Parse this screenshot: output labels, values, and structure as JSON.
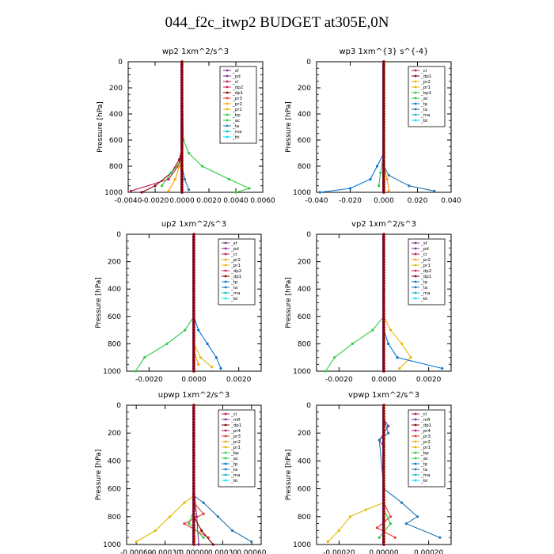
{
  "page": {
    "title": "044_f2c_itwp2  BUDGET at305E,0N"
  },
  "colors": {
    "_sf": "#7b3294",
    "_pd": "#7b3294",
    "_cl": "#c2185b",
    "_dp1": "#8b0000",
    "_dp2": "#d81b60",
    "_pr1": "#e6b800",
    "_pr2": "#ffa000",
    "_pr3": "#e53935",
    "_pr4": "#c2185b",
    "_bp": "#2ecc40",
    "_bp1": "#2ecc40",
    "_ac": "#2ecc40",
    "_dp2b": "#2ecc40",
    "_tp": "#0074d9",
    "_ta": "#1f77b4",
    "_ma": "#00bcd4",
    "_bt": "#00e5ff",
    "_mfl": "#7b3294"
  },
  "chart_data": [
    {
      "type": "line",
      "title": "wp2   1xm^2/s^3",
      "ylabel": "Pressure  [hPa]",
      "ylim": [
        1000,
        0
      ],
      "xlim": [
        -0.004,
        0.006
      ],
      "xticks": [
        "-0.0040",
        "-0.0020",
        "0.0000",
        "0.0020",
        "0.0040",
        "0.0060"
      ],
      "xtick_values": [
        -0.004,
        -0.002,
        0.0,
        0.002,
        0.004,
        0.006
      ],
      "yticks": [
        "0",
        "200",
        "400",
        "600",
        "800",
        "1000"
      ],
      "legend": [
        "_sf",
        "_pd",
        "_cl",
        "_dp2",
        "_dp1",
        "_pr3",
        "_pr2",
        "_pr1",
        "_bp",
        "_ac",
        "_ta",
        "_ma",
        "_bt"
      ],
      "series": [
        {
          "key": "_pd",
          "color": "#7b3294",
          "points": [
            [
              0,
              0
            ],
            [
              0,
              200
            ],
            [
              0,
              400
            ],
            [
              0,
              600
            ],
            [
              0,
              800
            ],
            [
              0,
              1000
            ]
          ]
        },
        {
          "key": "_cl",
          "color": "#c2185b",
          "points": [
            [
              0,
              0
            ],
            [
              0,
              600
            ],
            [
              0,
              700
            ],
            [
              -0.0003,
              800
            ],
            [
              -0.001,
              900
            ],
            [
              -0.0038,
              990
            ]
          ]
        },
        {
          "key": "_dp1",
          "color": "#8b0000",
          "points": [
            [
              0,
              0
            ],
            [
              0,
              650
            ],
            [
              -0.0002,
              750
            ],
            [
              -0.0008,
              850
            ],
            [
              -0.002,
              950
            ],
            [
              -0.003,
              1000
            ]
          ]
        },
        {
          "key": "_pr2",
          "color": "#ffa000",
          "points": [
            [
              0,
              0
            ],
            [
              0,
              700
            ],
            [
              -0.0002,
              800
            ],
            [
              -0.0005,
              900
            ],
            [
              -0.001,
              990
            ]
          ]
        },
        {
          "key": "_ac",
          "color": "#2ecc40",
          "points": [
            [
              0,
              0
            ],
            [
              0.0001,
              600
            ],
            [
              0.0005,
              700
            ],
            [
              0.0015,
              800
            ],
            [
              0.0035,
              900
            ],
            [
              0.005,
              970
            ],
            [
              0.004,
              1000
            ]
          ]
        },
        {
          "key": "_ta",
          "color": "#1f77b4",
          "points": [
            [
              0,
              0
            ],
            [
              0,
              800
            ],
            [
              0.0002,
              900
            ],
            [
              0.0005,
              980
            ]
          ]
        },
        {
          "key": "_bp",
          "color": "#2ecc40",
          "points": [
            [
              0,
              0
            ],
            [
              0,
              750
            ],
            [
              -0.0008,
              850
            ],
            [
              -0.0015,
              950
            ]
          ]
        }
      ]
    },
    {
      "type": "line",
      "title": "wp3   1xm^{3} s^{-4}",
      "ylabel": "Pressure  [hPa]",
      "ylim": [
        1000,
        0
      ],
      "xlim": [
        -0.04,
        0.04
      ],
      "xticks": [
        "-0.040",
        "-0.020",
        "0.000",
        "0.020",
        "0.040"
      ],
      "xtick_values": [
        -0.04,
        -0.02,
        0.0,
        0.02,
        0.04
      ],
      "yticks": [
        "0",
        "200",
        "400",
        "600",
        "800",
        "1000"
      ],
      "legend": [
        "_cl",
        "_dp1",
        "_pr2",
        "_pr1",
        "_bp1",
        "_ac",
        "_tp",
        "_ta",
        "_ma",
        "_bt"
      ],
      "series": [
        {
          "key": "_cl",
          "color": "#c2185b",
          "points": [
            [
              0,
              0
            ],
            [
              0,
              400
            ],
            [
              0,
              800
            ],
            [
              0,
              1000
            ]
          ]
        },
        {
          "key": "_ac",
          "color": "#2ecc40",
          "points": [
            [
              0,
              0
            ],
            [
              0,
              700
            ],
            [
              -0.002,
              850
            ],
            [
              -0.003,
              950
            ]
          ]
        },
        {
          "key": "_tp",
          "color": "#0074d9",
          "points": [
            [
              0,
              0
            ],
            [
              0,
              700
            ],
            [
              -0.004,
              800
            ],
            [
              -0.008,
              900
            ],
            [
              -0.02,
              970
            ],
            [
              -0.038,
              1000
            ]
          ]
        },
        {
          "key": "_ta",
          "color": "#1f77b4",
          "points": [
            [
              0,
              0
            ],
            [
              0,
              800
            ],
            [
              0.003,
              870
            ],
            [
              0.015,
              950
            ],
            [
              0.03,
              990
            ]
          ]
        },
        {
          "key": "_pr2",
          "color": "#ffa000",
          "points": [
            [
              0,
              0
            ],
            [
              0,
              800
            ],
            [
              0.002,
              900
            ],
            [
              0.003,
              990
            ]
          ]
        }
      ]
    },
    {
      "type": "line",
      "title": "up2   1xm^2/s^3",
      "ylabel": "Pressure  [hPa]",
      "ylim": [
        1000,
        0
      ],
      "xlim": [
        -0.003,
        0.003
      ],
      "xticks": [
        "-0.0020",
        "0.0000",
        "0.0020"
      ],
      "xtick_values": [
        -0.002,
        0.0,
        0.002
      ],
      "yticks": [
        "0",
        "200",
        "400",
        "600",
        "800",
        "1000"
      ],
      "legend": [
        "_sf",
        "_pd",
        "_cl",
        "_pr2",
        "_pr1",
        "_dp2",
        "_dp1",
        "_tp",
        "_ta",
        "_ma",
        "_bt"
      ],
      "series": [
        {
          "key": "_pd",
          "color": "#7b3294",
          "points": [
            [
              0,
              0
            ],
            [
              0,
              1000
            ]
          ]
        },
        {
          "key": "_cl",
          "color": "#c2185b",
          "points": [
            [
              0,
              0
            ],
            [
              0,
              1000
            ]
          ]
        },
        {
          "key": "_dp1",
          "color": "#2ecc40",
          "points": [
            [
              0,
              0
            ],
            [
              0,
              600
            ],
            [
              -0.0004,
              700
            ],
            [
              -0.0012,
              800
            ],
            [
              -0.0022,
              900
            ],
            [
              -0.0026,
              1000
            ]
          ]
        },
        {
          "key": "_tp",
          "color": "#0074d9",
          "points": [
            [
              0,
              0
            ],
            [
              0,
              600
            ],
            [
              0.0002,
              700
            ],
            [
              0.0006,
              800
            ],
            [
              0.001,
              900
            ],
            [
              0.0012,
              980
            ]
          ]
        },
        {
          "key": "_pr1",
          "color": "#e6b800",
          "points": [
            [
              0,
              0
            ],
            [
              0,
              800
            ],
            [
              0.0003,
              900
            ],
            [
              0.0008,
              970
            ]
          ]
        },
        {
          "key": "_pr2",
          "color": "#ffa000",
          "points": [
            [
              0,
              0
            ],
            [
              0,
              850
            ],
            [
              0.0002,
              950
            ]
          ]
        }
      ]
    },
    {
      "type": "line",
      "title": "vp2   1xm^2/s^3",
      "ylabel": "Pressure  [hPa]",
      "ylim": [
        1000,
        0
      ],
      "xlim": [
        -0.003,
        0.003
      ],
      "xticks": [
        "-0.0020",
        "0.0000",
        "0.0020"
      ],
      "xtick_values": [
        -0.002,
        0.0,
        0.002
      ],
      "yticks": [
        "0",
        "200",
        "400",
        "600",
        "800",
        "1000"
      ],
      "legend": [
        "_sf",
        "_pd",
        "_cl",
        "_pr2",
        "_pr1",
        "_dp2",
        "_dp1",
        "_tp",
        "_ta",
        "_ma",
        "_bt"
      ],
      "series": [
        {
          "key": "_pd",
          "color": "#7b3294",
          "points": [
            [
              0,
              0
            ],
            [
              0,
              1000
            ]
          ]
        },
        {
          "key": "_cl",
          "color": "#c2185b",
          "points": [
            [
              0,
              0
            ],
            [
              0,
              1000
            ]
          ]
        },
        {
          "key": "_dp1",
          "color": "#2ecc40",
          "points": [
            [
              0,
              0
            ],
            [
              0,
              600
            ],
            [
              -0.0005,
              700
            ],
            [
              -0.0014,
              800
            ],
            [
              -0.0022,
              900
            ],
            [
              -0.0026,
              1000
            ]
          ]
        },
        {
          "key": "_pr1",
          "color": "#e6b800",
          "points": [
            [
              0,
              0
            ],
            [
              0,
              600
            ],
            [
              0.0003,
              700
            ],
            [
              0.0008,
              800
            ],
            [
              0.0012,
              900
            ],
            [
              0.0007,
              980
            ]
          ]
        },
        {
          "key": "_tp",
          "color": "#0074d9",
          "points": [
            [
              0,
              0
            ],
            [
              0,
              700
            ],
            [
              0.0002,
              800
            ],
            [
              0.0006,
              900
            ],
            [
              0.0026,
              980
            ]
          ]
        }
      ]
    },
    {
      "type": "line",
      "title": "upwp   1xm^2/s^3",
      "ylabel": "Pressure  [hPa]",
      "ylim": [
        1000,
        0
      ],
      "xlim": [
        -0.0007,
        0.0007
      ],
      "xticks": [
        "-0.00060",
        "-0.00030",
        "0.00000",
        "0.00030",
        "0.00060"
      ],
      "xtick_values": [
        -0.0006,
        -0.0003,
        0.0,
        0.0003,
        0.0006
      ],
      "yticks": [
        "0",
        "200",
        "400",
        "600",
        "800",
        "1000"
      ],
      "legend": [
        "_cl",
        "_mfl",
        "_dp1",
        "_pr4",
        "_pr3",
        "_pr2",
        "_pr1",
        "_bp",
        "_ac",
        "_tp",
        "_ta",
        "_ma",
        "_bt"
      ],
      "series": [
        {
          "key": "_cl",
          "color": "#7b3294",
          "points": [
            [
              0,
              0
            ],
            [
              0,
              600
            ],
            [
              3e-05,
              800
            ],
            [
              5e-05,
              1000
            ]
          ]
        },
        {
          "key": "_pr1",
          "color": "#e6b800",
          "points": [
            [
              0,
              0
            ],
            [
              0,
              650
            ],
            [
              -0.0001,
              700
            ],
            [
              -0.00025,
              800
            ],
            [
              -0.0004,
              900
            ],
            [
              -0.0006,
              980
            ]
          ]
        },
        {
          "key": "_ta",
          "color": "#1f77b4",
          "points": [
            [
              0,
              0
            ],
            [
              0,
              650
            ],
            [
              0.0001,
              700
            ],
            [
              0.00025,
              800
            ],
            [
              0.0004,
              900
            ],
            [
              0.0006,
              980
            ]
          ]
        },
        {
          "key": "_pr3",
          "color": "#e53935",
          "points": [
            [
              0,
              0
            ],
            [
              0,
              700
            ],
            [
              0.0001,
              780
            ],
            [
              -0.0001,
              850
            ],
            [
              0.00015,
              950
            ]
          ]
        },
        {
          "key": "_ac",
          "color": "#2ecc40",
          "points": [
            [
              0,
              0
            ],
            [
              0,
              750
            ],
            [
              -5e-05,
              850
            ],
            [
              0.0001,
              950
            ]
          ]
        },
        {
          "key": "_dp1",
          "color": "#8b0000",
          "points": [
            [
              0,
              0
            ],
            [
              0,
              800
            ],
            [
              8e-05,
              900
            ],
            [
              0.0002,
              1000
            ]
          ]
        }
      ]
    },
    {
      "type": "line",
      "title": "vpwp   1xm^2/s^3",
      "ylabel": "Pressure  [hPa]",
      "ylim": [
        1000,
        0
      ],
      "xlim": [
        -0.0003,
        0.0003
      ],
      "xticks": [
        "-0.00020",
        "0.00000",
        "0.00020"
      ],
      "xtick_values": [
        -0.0002,
        0.0,
        0.0002
      ],
      "yticks": [
        "0",
        "200",
        "400",
        "600",
        "800",
        "1000"
      ],
      "legend": [
        "_cl",
        "_mfl",
        "_dp1",
        "_pr4",
        "_pr3",
        "_pr2",
        "_pr1",
        "_bp",
        "_ac",
        "_tp",
        "_ta",
        "_ma",
        "_bt"
      ],
      "series": [
        {
          "key": "_cl",
          "color": "#7b3294",
          "points": [
            [
              0,
              0
            ],
            [
              0,
              100
            ],
            [
              2e-05,
              150
            ],
            [
              -2e-05,
              250
            ],
            [
              0,
              300
            ],
            [
              0,
              1000
            ]
          ]
        },
        {
          "key": "_pr1",
          "color": "#e6b800",
          "points": [
            [
              0,
              0
            ],
            [
              0,
              700
            ],
            [
              -8e-05,
              750
            ],
            [
              -0.00015,
              800
            ],
            [
              -0.0002,
              900
            ],
            [
              -0.00025,
              980
            ]
          ]
        },
        {
          "key": "_ta",
          "color": "#1f77b4",
          "points": [
            [
              0,
              0
            ],
            [
              0,
              100
            ],
            [
              2e-05,
              200
            ],
            [
              -2e-05,
              250
            ],
            [
              0,
              600
            ],
            [
              8e-05,
              700
            ],
            [
              0.00015,
              800
            ],
            [
              0.0001,
              850
            ],
            [
              0.00025,
              950
            ]
          ]
        },
        {
          "key": "_pr3",
          "color": "#e53935",
          "points": [
            [
              0,
              0
            ],
            [
              0,
              700
            ],
            [
              3e-05,
              800
            ],
            [
              -3e-05,
              880
            ],
            [
              5e-05,
              950
            ]
          ]
        },
        {
          "key": "_ac",
          "color": "#2ecc40",
          "points": [
            [
              0,
              0
            ],
            [
              0,
              750
            ],
            [
              3e-05,
              850
            ],
            [
              -2e-05,
              950
            ]
          ]
        }
      ]
    }
  ]
}
